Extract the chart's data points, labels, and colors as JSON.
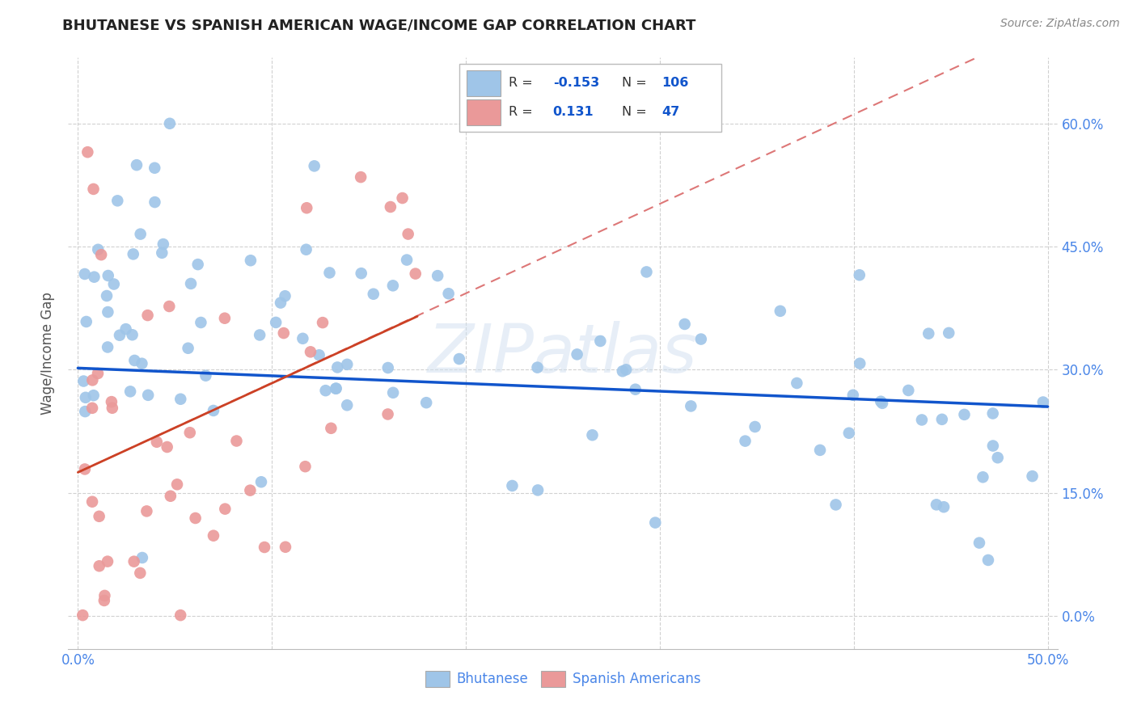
{
  "title": "BHUTANESE VS SPANISH AMERICAN WAGE/INCOME GAP CORRELATION CHART",
  "source": "Source: ZipAtlas.com",
  "ylabel": "Wage/Income Gap",
  "legend_label_1": "Bhutanese",
  "legend_label_2": "Spanish Americans",
  "r1": "-0.153",
  "n1": "106",
  "r2": "0.131",
  "n2": "47",
  "xlim": [
    -0.005,
    0.505
  ],
  "ylim": [
    -0.04,
    0.68
  ],
  "xticks": [
    0.0,
    0.1,
    0.2,
    0.3,
    0.4,
    0.5
  ],
  "xtick_labels": [
    "0.0%",
    "",
    "",
    "",
    "",
    "50.0%"
  ],
  "ytick_labels_right": [
    "0.0%",
    "15.0%",
    "30.0%",
    "45.0%",
    "60.0%"
  ],
  "yticks": [
    0.0,
    0.15,
    0.3,
    0.45,
    0.6
  ],
  "color_blue": "#9fc5e8",
  "color_pink": "#ea9999",
  "color_blue_line": "#1155cc",
  "color_pink_line": "#cc4125",
  "color_pink_dash": "#dd7777",
  "color_tick": "#4a86e8",
  "background": "#ffffff",
  "watermark": "ZIPatlas",
  "seed": 17
}
